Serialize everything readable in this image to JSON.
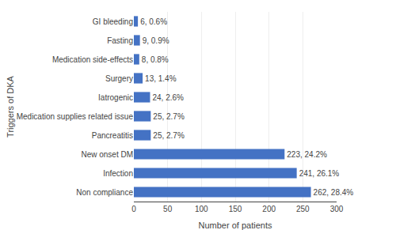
{
  "chart_data": {
    "type": "bar",
    "orientation": "horizontal",
    "categories": [
      "Non compliance",
      "Infection",
      "New onset DM",
      "Pancreatitis",
      "Medication supplies related issue",
      "Iatrogenic",
      "Surgery",
      "Medication side-effects",
      "Fasting",
      "GI bleeding"
    ],
    "values": [
      262,
      241,
      223,
      25,
      25,
      24,
      13,
      8,
      9,
      6
    ],
    "value_labels": [
      "262, 28.4%",
      "241, 26.1%",
      "223, 24.2%",
      "25, 2.7%",
      "25, 2.7%",
      "24, 2.6%",
      "13, 1.4%",
      "8, 0.8%",
      "9, 0.9%",
      "6, 0.6%"
    ],
    "data_labels": true,
    "color": "#4472c4",
    "xlabel": "Number of patients",
    "ylabel": "Triggers of DKA",
    "xlim": [
      0,
      300
    ],
    "xticks": [
      0,
      50,
      100,
      150,
      200,
      250,
      300
    ],
    "grid": true
  }
}
